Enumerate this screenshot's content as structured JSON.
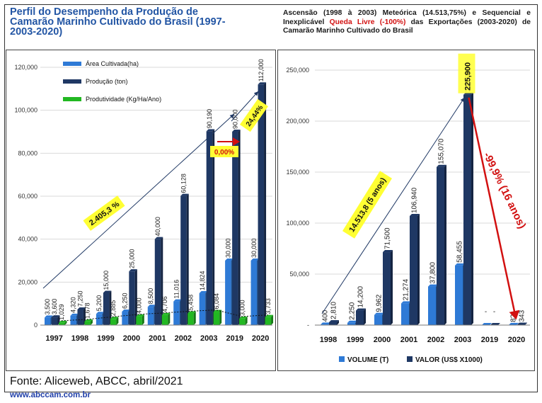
{
  "header": {
    "left_title": "Perfil do Desempenho da Produção de Camarão Marinho Cultivado do Brasil (1997-2003-2020)",
    "right_title_pre": "Ascensão (1998 à 2003) Meteórica (14.513,75%) e Sequencial e Inexplicável ",
    "right_title_red": "Queda Livre (-100%)",
    "right_title_post": " das Exportações (2003-2020) de Camarão Marinho Cultivado do Brasil"
  },
  "footer": {
    "source": "Fonte: Aliceweb, ABCC, abril/2021",
    "site": "www.abccam.com.br"
  },
  "colors": {
    "area": "#2e7ad6",
    "producao": "#1f3864",
    "produtividade": "#22b822",
    "volume": "#2e7ad6",
    "valor": "#1f3864",
    "highlight": "#ffff33",
    "red": "#d21010"
  },
  "chart_data": [
    {
      "type": "bar",
      "categories": [
        "1997",
        "1998",
        "1999",
        "2000",
        "2001",
        "2002",
        "2003",
        "2019",
        "2020"
      ],
      "series": [
        {
          "name": "Área Cultivada(ha)",
          "values": [
            3500,
            4320,
            5200,
            6250,
            8500,
            11016,
            14824,
            30000,
            30000
          ],
          "labels": [
            "3,500",
            "4,320",
            "5,200",
            "6,250",
            "8,500",
            "11,016",
            "14,824",
            "30,000",
            "30,000"
          ]
        },
        {
          "name": "Produção (ton)",
          "values": [
            3600,
            7250,
            15000,
            25000,
            40000,
            60128,
            90190,
            90000,
            112000
          ],
          "labels": [
            "3,600",
            "7,250",
            "15,000",
            "25,000",
            "40,000",
            "60,128",
            "90,190",
            "90,000",
            "112,000"
          ]
        },
        {
          "name": "Produtividade (Kg/Ha/Ano)",
          "values": [
            1029,
            1678,
            2885,
            4000,
            4706,
            5458,
            6084,
            3000,
            3733
          ],
          "labels": [
            "1,029",
            "1,678",
            "2,885",
            "4,000",
            "4,706",
            "5,458",
            "6,084",
            "3,000",
            "3,733"
          ]
        }
      ],
      "ylim": [
        0,
        120000
      ],
      "yticks": [
        "0",
        "20,000",
        "40,000",
        "60,000",
        "80,000",
        "100,000",
        "120,000"
      ],
      "legend": "top-left",
      "annotations": [
        "2.405,3 %",
        "24,44%",
        "0,00%"
      ]
    },
    {
      "type": "bar",
      "categories": [
        "1998",
        "1999",
        "2000",
        "2001",
        "2002",
        "2003",
        "2019",
        "2020"
      ],
      "series": [
        {
          "name": "VOLUME (T)",
          "values": [
            400,
            2250,
            9962,
            21274,
            37800,
            58455,
            0,
            82
          ],
          "labels": [
            "400",
            "2,250",
            "9,962",
            "21,274",
            "37,800",
            "58,455",
            "-",
            "82"
          ]
        },
        {
          "name": "VALOR (US$ X1000)",
          "values": [
            2810,
            14200,
            71500,
            106940,
            155070,
            225900,
            0,
            343
          ],
          "labels": [
            "2,810",
            "14,200",
            "71,500",
            "106,940",
            "155,070",
            "225,900",
            "-",
            "343"
          ]
        }
      ],
      "ylim": [
        0,
        250000
      ],
      "yticks": [
        "-",
        "50,000",
        "100,000",
        "150,000",
        "200,000",
        "250,000"
      ],
      "legend": "bottom",
      "annotations": [
        "14.513,8 (5 anos)",
        "-99,9% (16 anos)"
      ]
    }
  ]
}
